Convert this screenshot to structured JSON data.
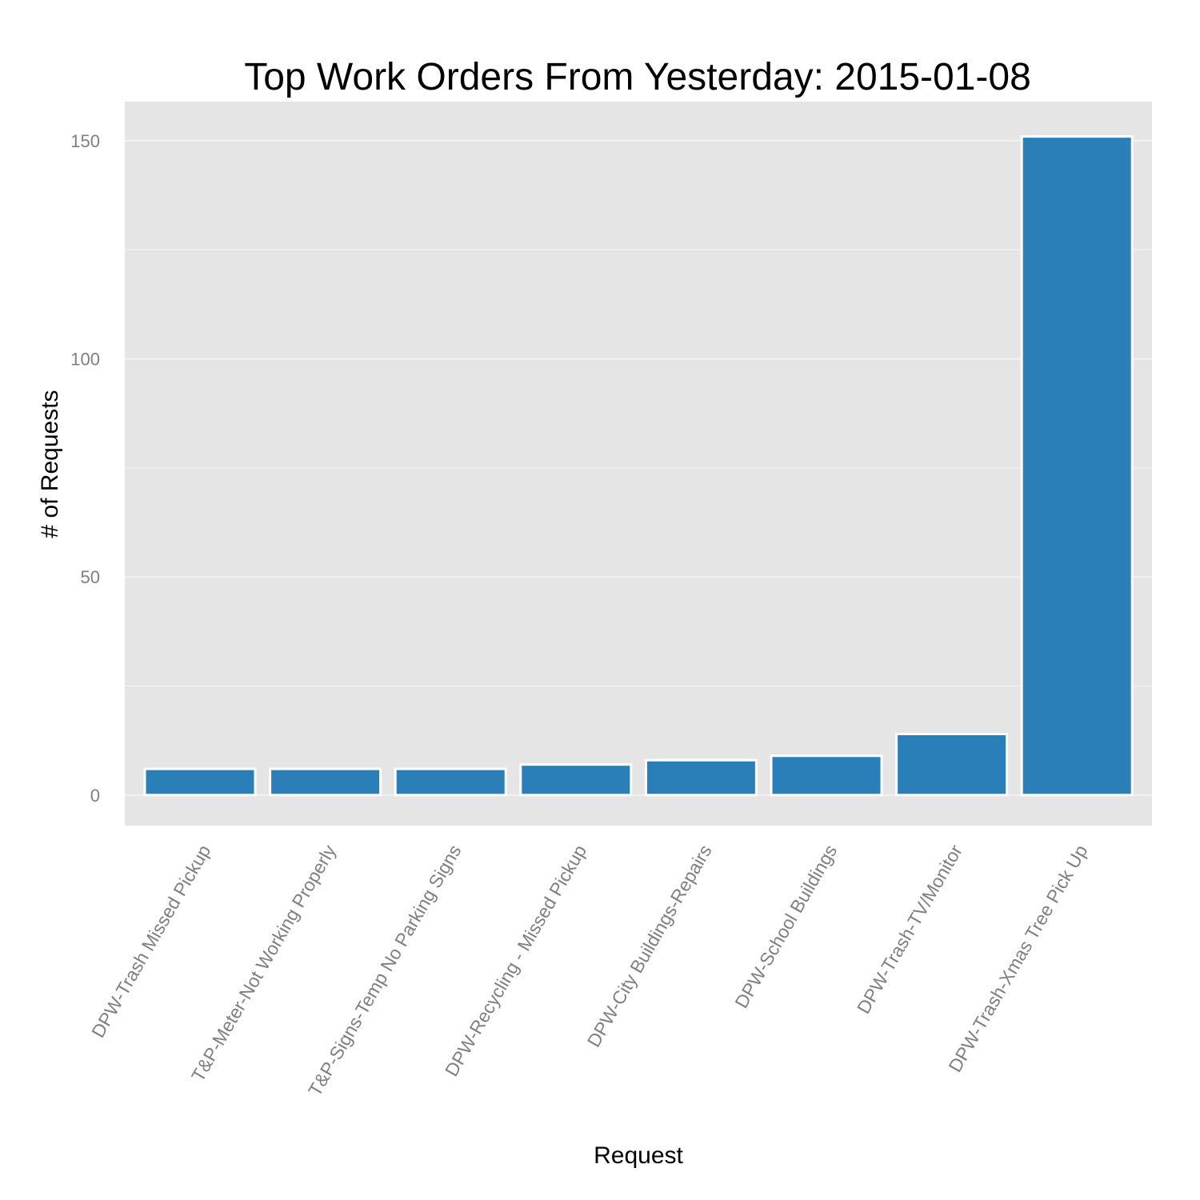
{
  "chart_data": {
    "type": "bar",
    "title": "Top Work Orders From Yesterday: 2015-01-08",
    "xlabel": "Request",
    "ylabel": "# of Requests",
    "categories": [
      "DPW-Trash Missed Pickup",
      "T&P-Meter-Not Working Properly",
      "T&P-Signs-Temp No Parking Signs",
      "DPW-Recycling - Missed Pickup",
      "DPW-City Buildings-Repairs",
      "DPW-School Buildings",
      "DPW-Trash-TV/Monitor",
      "DPW-Trash-Xmas Tree Pick Up"
    ],
    "values": [
      6,
      6,
      6,
      7,
      8,
      9,
      14,
      151
    ],
    "ylim": [
      -7,
      159
    ],
    "yticks": [
      0,
      50,
      100,
      150
    ],
    "y_tick_labels": [
      "0",
      "50",
      "100",
      "150"
    ],
    "minor_gridlines": [
      25,
      75,
      125
    ],
    "grid": true,
    "legend": "none",
    "colors": {
      "bar_fill": "#2a7fb8",
      "bar_outline": "#ffffff",
      "panel_background": "#e5e5e5",
      "gridline": "#f2f2f2",
      "tick_label": "#7f7f7f",
      "text": "#000000"
    }
  }
}
